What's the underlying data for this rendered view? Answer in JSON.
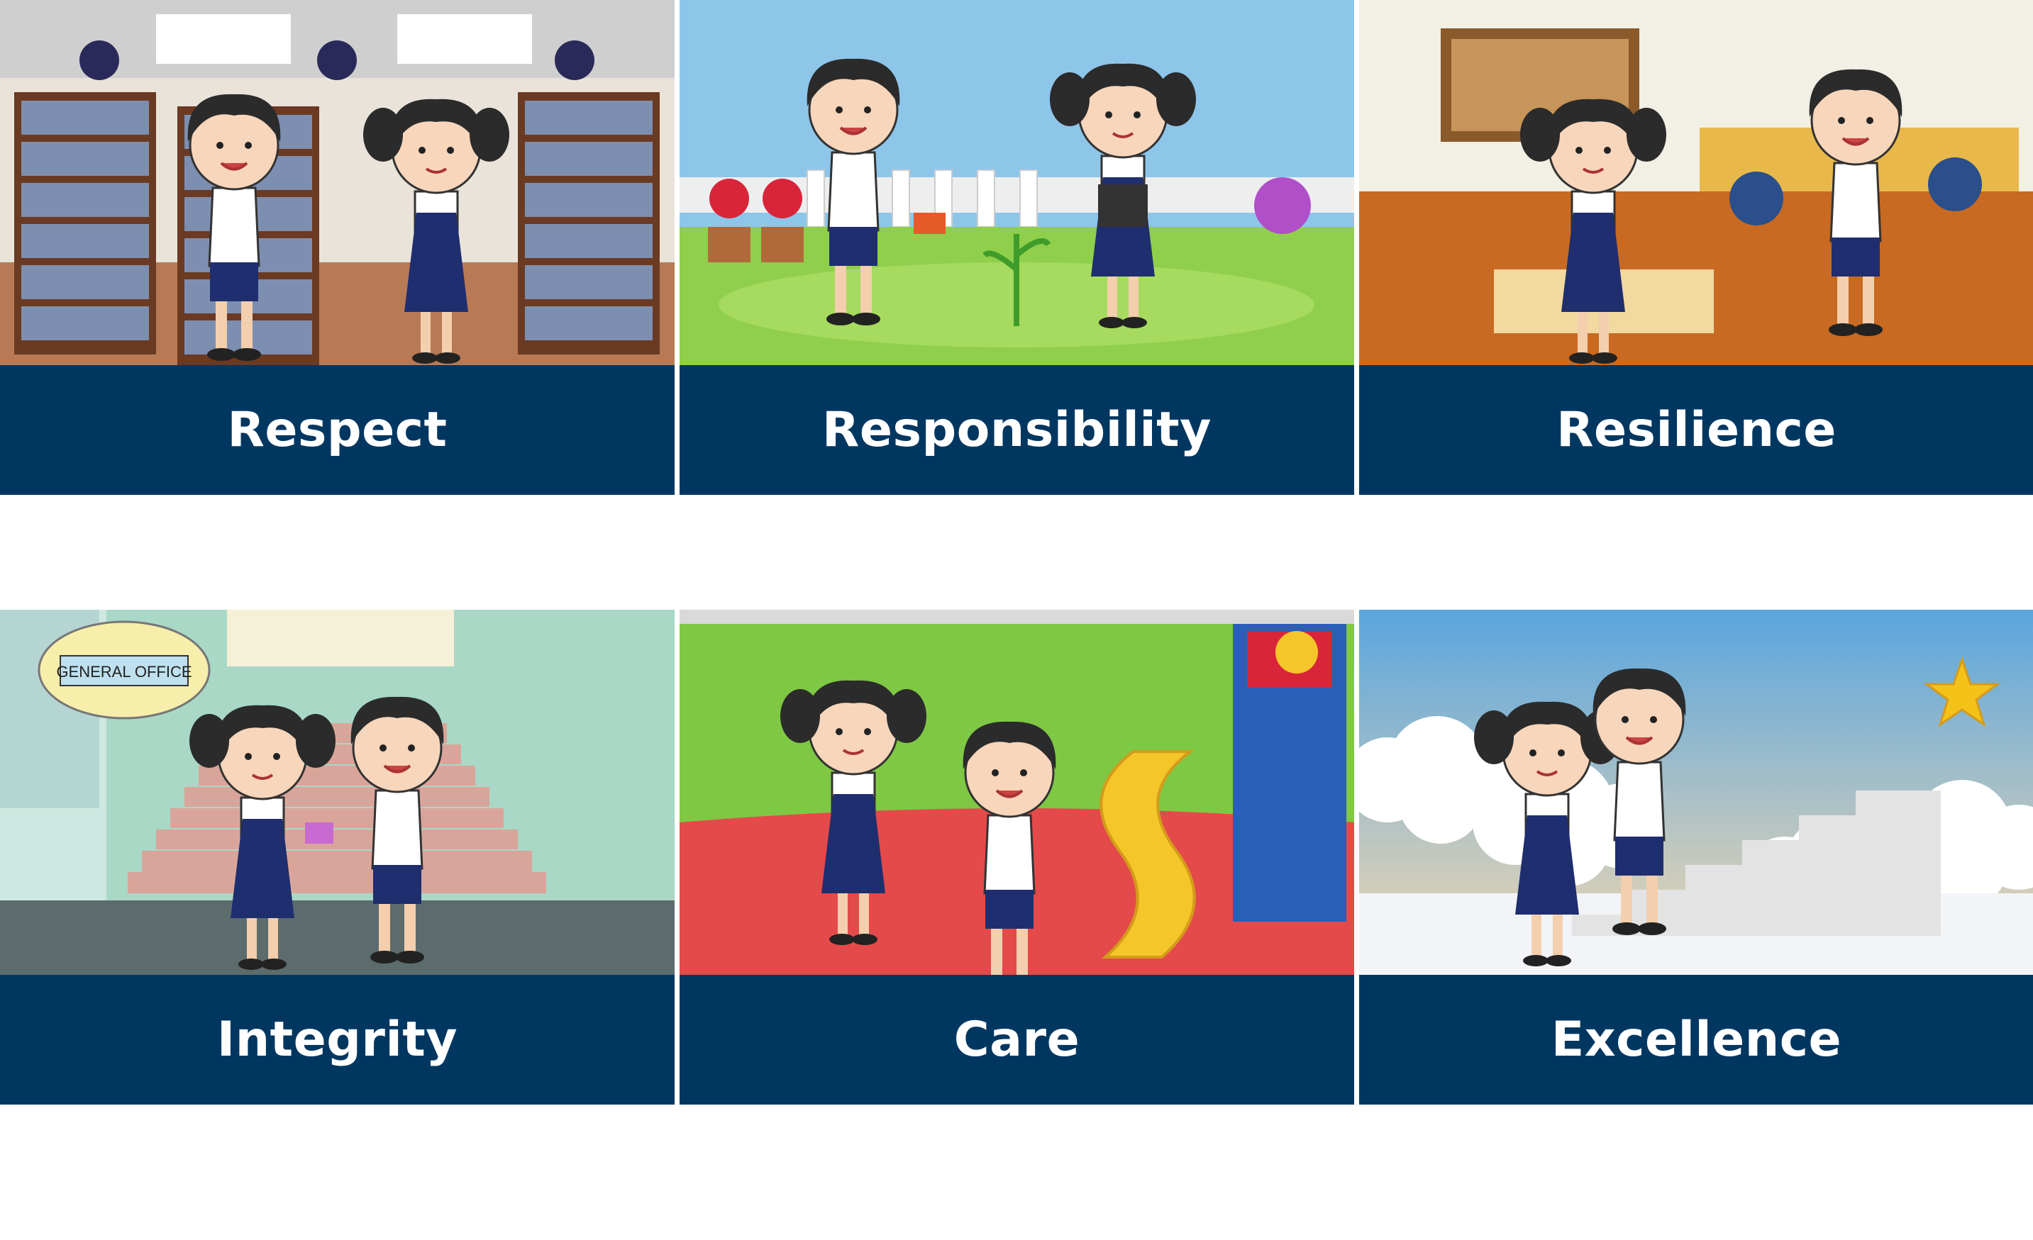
{
  "cards": [
    {
      "label": "Respect",
      "scene": "library"
    },
    {
      "label": "Responsibility",
      "scene": "garden"
    },
    {
      "label": "Resilience",
      "scene": "classroom"
    },
    {
      "label": "Integrity",
      "scene": "staircase",
      "sign_text": "GENERAL OFFICE"
    },
    {
      "label": "Care",
      "scene": "playground"
    },
    {
      "label": "Excellence",
      "scene": "clouds-stairs"
    }
  ],
  "colors": {
    "banner": "#003761",
    "label_text": "#ffffff",
    "page_bg": "#ffffff"
  }
}
